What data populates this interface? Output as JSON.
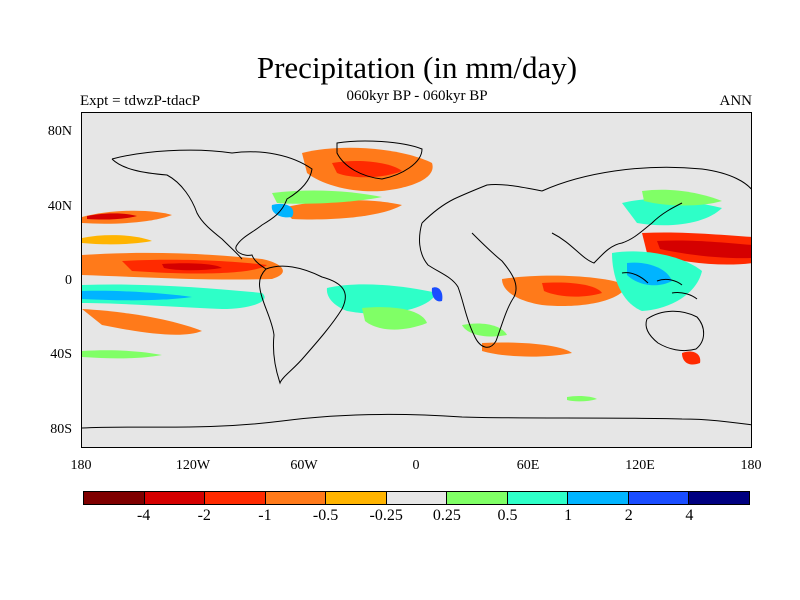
{
  "header": {
    "title": "Precipitation (in mm/day)",
    "subtitle": "060kyr BP - 060kyr BP",
    "left_label": "Expt = tdwzP-tdacP",
    "right_label": "ANN"
  },
  "map": {
    "projection": "cylindrical equidistant",
    "lon_range": [
      -180,
      180
    ],
    "lat_range": [
      -90,
      90
    ],
    "background_color": "#e6e6e6",
    "coastline_color": "#000000",
    "lat_labels": [
      "80N",
      "40N",
      "0",
      "40S",
      "80S"
    ],
    "lon_labels": [
      "180",
      "120W",
      "60W",
      "0",
      "60E",
      "120E",
      "180"
    ]
  },
  "colorbar": {
    "colors": [
      "#7f0000",
      "#d50000",
      "#ff2a00",
      "#ff7a1a",
      "#ffb400",
      "#e6e6e6",
      "#80ff66",
      "#2effc8",
      "#00b4ff",
      "#1a4dff",
      "#000080"
    ],
    "labels": [
      "-4",
      "-2",
      "-1",
      "-0.5",
      "-0.25",
      "0.25",
      "0.5",
      "1",
      "2",
      "4"
    ]
  }
}
